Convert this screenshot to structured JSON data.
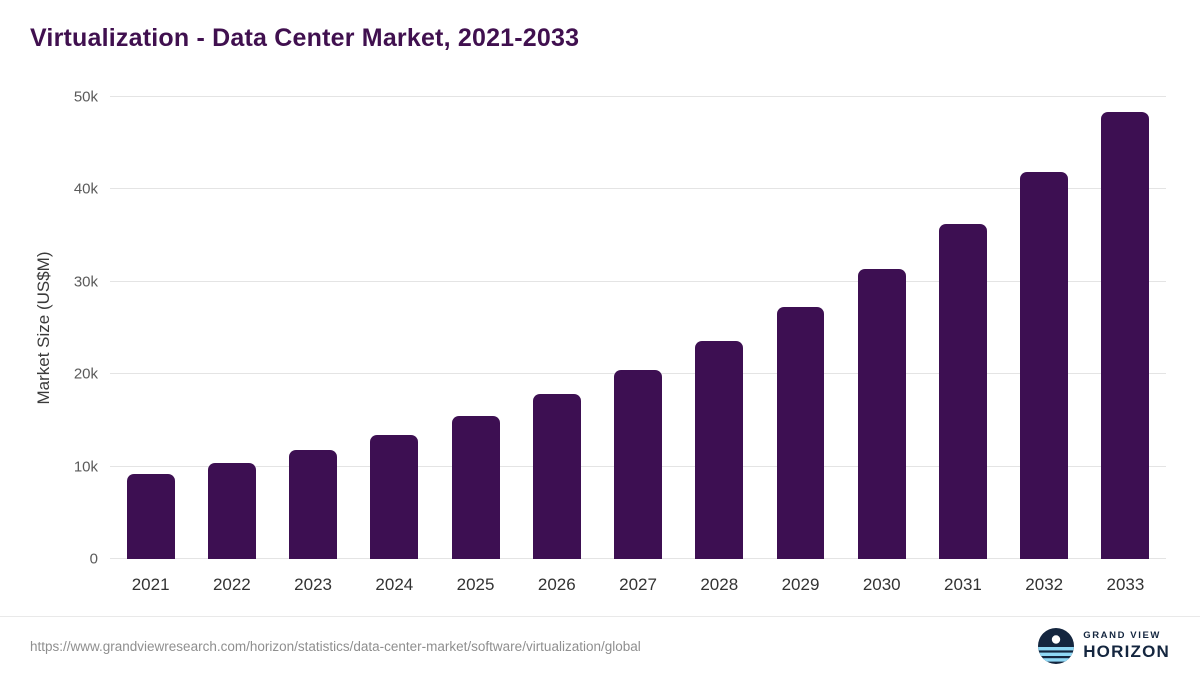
{
  "chart_data": {
    "type": "bar",
    "title": "Virtualization - Data Center Market, 2021-2033",
    "xlabel": "",
    "ylabel": "Market Size (US$M)",
    "categories": [
      "2021",
      "2022",
      "2023",
      "2024",
      "2025",
      "2026",
      "2027",
      "2028",
      "2029",
      "2030",
      "2031",
      "2032",
      "2033"
    ],
    "values": [
      9200,
      10400,
      11800,
      13400,
      15500,
      17900,
      20500,
      23600,
      27300,
      31400,
      36300,
      41900,
      48400
    ],
    "ylim": [
      0,
      50000
    ],
    "yticks": [
      0,
      10000,
      20000,
      30000,
      40000,
      50000
    ],
    "ytick_labels": [
      "0",
      "10k",
      "20k",
      "30k",
      "40k",
      "50k"
    ],
    "grid": "horizontal",
    "legend_position": "none",
    "bar_color": "#3d0f52"
  },
  "colors": {
    "title": "#40104f",
    "bar": "#3d0f52",
    "gridline": "#e4e4e4",
    "axis_text": "#5a5a5a",
    "brand_navy": "#14263f",
    "brand_light_blue": "#8fd8f5"
  },
  "footer": {
    "source_url": "https://www.grandviewresearch.com/horizon/statistics/data-center-market/software/virtualization/global",
    "brand": {
      "line1": "GRAND VIEW",
      "line2": "HORIZON"
    }
  }
}
